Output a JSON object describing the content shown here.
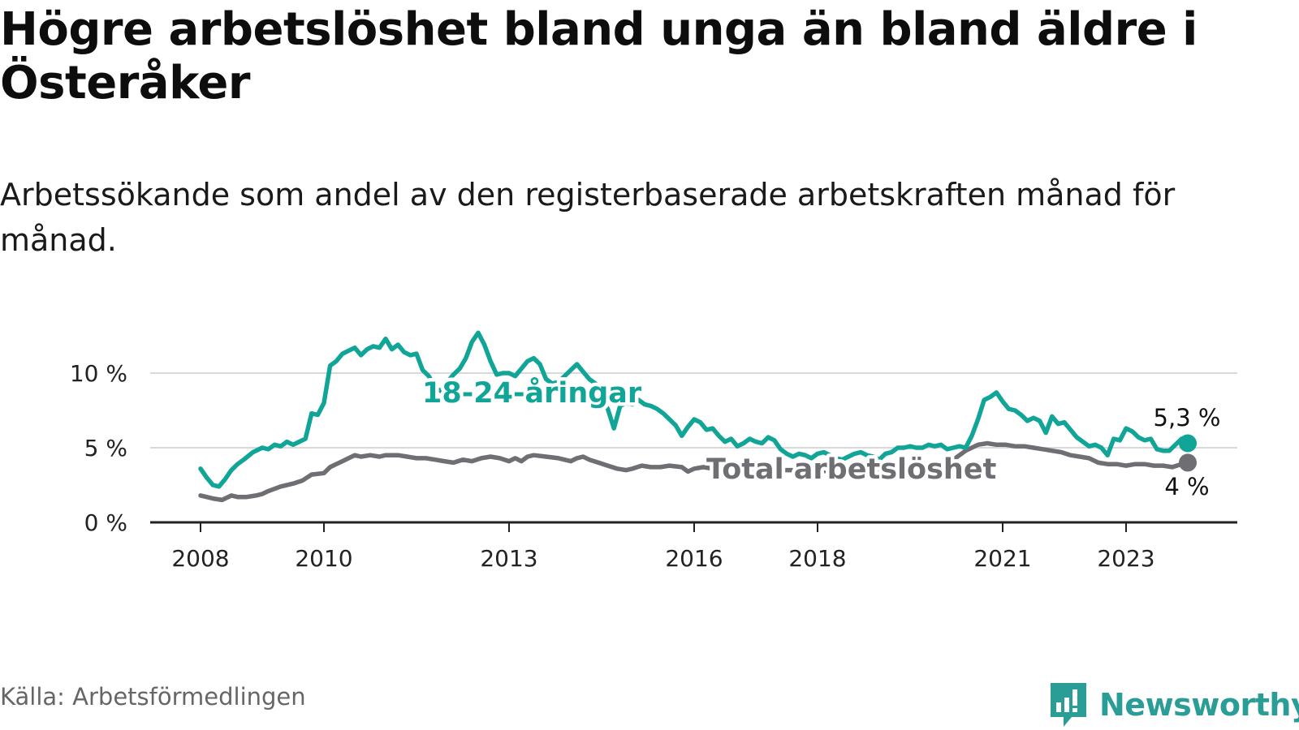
{
  "title": "Högre arbetslöshet bland unga än bland äldre i Österåker",
  "subtitle": "Arbetssökande som andel av den registerbaserade arbetskraften månad för månad.",
  "source": "Källa: Arbetsförmedlingen",
  "brand": "Newsworthy",
  "colors": {
    "youth": "#11a597",
    "total": "#6e6e73",
    "grid": "#d9d9d9",
    "axis": "#222222",
    "brand": "#2a9d96"
  },
  "chart_data": {
    "type": "line",
    "x_unit": "year (decimal)",
    "xlim": [
      2006.8,
      2024.05
    ],
    "ylim": [
      0,
      11.5
    ],
    "yticks": [
      0,
      5,
      10
    ],
    "ytick_labels": [
      "0 %",
      "5 %",
      "10 %"
    ],
    "xticks": [
      2008,
      2010,
      2013,
      2016,
      2018,
      2021,
      2023
    ],
    "xtick_labels": [
      "2008",
      "2010",
      "2013",
      "2016",
      "2018",
      "2021",
      "2023"
    ],
    "grid": true,
    "series": [
      {
        "name": "18-24-åringar",
        "label": "18-24-åringar",
        "end_label": "5,3 %",
        "points": [
          [
            2008.0,
            3.6
          ],
          [
            2008.1,
            3.0
          ],
          [
            2008.2,
            2.5
          ],
          [
            2008.3,
            2.4
          ],
          [
            2008.4,
            2.9
          ],
          [
            2008.5,
            3.5
          ],
          [
            2008.6,
            3.9
          ],
          [
            2008.7,
            4.2
          ],
          [
            2008.85,
            4.7
          ],
          [
            2009.0,
            5.0
          ],
          [
            2009.1,
            4.9
          ],
          [
            2009.2,
            5.2
          ],
          [
            2009.3,
            5.1
          ],
          [
            2009.4,
            5.4
          ],
          [
            2009.5,
            5.2
          ],
          [
            2009.6,
            5.4
          ],
          [
            2009.7,
            5.6
          ],
          [
            2009.8,
            7.3
          ],
          [
            2009.9,
            7.2
          ],
          [
            2010.0,
            8.0
          ],
          [
            2010.1,
            10.5
          ],
          [
            2010.2,
            10.8
          ],
          [
            2010.3,
            11.3
          ],
          [
            2010.4,
            11.5
          ],
          [
            2010.5,
            11.7
          ],
          [
            2010.6,
            11.2
          ],
          [
            2010.7,
            11.6
          ],
          [
            2010.8,
            11.8
          ],
          [
            2010.9,
            11.7
          ],
          [
            2011.0,
            12.3
          ],
          [
            2011.1,
            11.6
          ],
          [
            2011.2,
            11.9
          ],
          [
            2011.3,
            11.4
          ],
          [
            2011.4,
            11.2
          ],
          [
            2011.5,
            11.3
          ],
          [
            2011.6,
            10.2
          ],
          [
            2011.7,
            9.8
          ],
          [
            2011.8,
            9.0
          ],
          [
            2011.9,
            8.8
          ],
          [
            2012.0,
            9.4
          ],
          [
            2012.1,
            9.9
          ],
          [
            2012.2,
            10.3
          ],
          [
            2012.3,
            11.0
          ],
          [
            2012.4,
            12.1
          ],
          [
            2012.5,
            12.7
          ],
          [
            2012.6,
            11.9
          ],
          [
            2012.7,
            10.8
          ],
          [
            2012.8,
            9.9
          ],
          [
            2012.9,
            10.0
          ],
          [
            2013.0,
            10.0
          ],
          [
            2013.1,
            9.8
          ],
          [
            2013.2,
            10.3
          ],
          [
            2013.3,
            10.8
          ],
          [
            2013.4,
            11.0
          ],
          [
            2013.5,
            10.6
          ],
          [
            2013.6,
            9.6
          ],
          [
            2013.7,
            9.3
          ],
          [
            2013.8,
            9.4
          ],
          [
            2013.9,
            9.8
          ],
          [
            2014.0,
            10.2
          ],
          [
            2014.1,
            10.6
          ],
          [
            2014.2,
            10.1
          ],
          [
            2014.3,
            9.6
          ],
          [
            2014.4,
            9.3
          ],
          [
            2014.5,
            8.2
          ],
          [
            2014.6,
            7.6
          ],
          [
            2014.7,
            6.3
          ],
          [
            2014.8,
            7.8
          ],
          [
            2014.9,
            8.0
          ],
          [
            2015.0,
            7.9
          ],
          [
            2015.1,
            8.2
          ],
          [
            2015.2,
            7.9
          ],
          [
            2015.3,
            7.8
          ],
          [
            2015.4,
            7.6
          ],
          [
            2015.5,
            7.3
          ],
          [
            2015.6,
            6.9
          ],
          [
            2015.7,
            6.5
          ],
          [
            2015.8,
            5.8
          ],
          [
            2015.9,
            6.4
          ],
          [
            2016.0,
            6.9
          ],
          [
            2016.1,
            6.7
          ],
          [
            2016.2,
            6.2
          ],
          [
            2016.3,
            6.3
          ],
          [
            2016.4,
            5.8
          ],
          [
            2016.5,
            5.4
          ],
          [
            2016.6,
            5.6
          ],
          [
            2016.7,
            5.1
          ],
          [
            2016.8,
            5.3
          ],
          [
            2016.9,
            5.6
          ],
          [
            2017.0,
            5.4
          ],
          [
            2017.1,
            5.3
          ],
          [
            2017.2,
            5.7
          ],
          [
            2017.3,
            5.5
          ],
          [
            2017.4,
            4.9
          ],
          [
            2017.5,
            4.6
          ],
          [
            2017.6,
            4.4
          ],
          [
            2017.7,
            4.6
          ],
          [
            2017.8,
            4.5
          ],
          [
            2017.9,
            4.3
          ],
          [
            2018.0,
            4.6
          ],
          [
            2018.1,
            4.7
          ],
          [
            2018.2,
            4.5
          ],
          [
            2018.3,
            4.3
          ],
          [
            2018.4,
            4.2
          ],
          [
            2018.5,
            4.4
          ],
          [
            2018.6,
            4.6
          ],
          [
            2018.7,
            4.7
          ],
          [
            2018.8,
            4.5
          ],
          [
            2018.9,
            4.4
          ],
          [
            2019.0,
            4.2
          ],
          [
            2019.1,
            4.6
          ],
          [
            2019.2,
            4.7
          ],
          [
            2019.3,
            5.0
          ],
          [
            2019.4,
            5.0
          ],
          [
            2019.5,
            5.1
          ],
          [
            2019.6,
            5.0
          ],
          [
            2019.7,
            5.0
          ],
          [
            2019.8,
            5.2
          ],
          [
            2019.9,
            5.1
          ],
          [
            2020.0,
            5.2
          ],
          [
            2020.1,
            4.9
          ],
          [
            2020.2,
            5.0
          ],
          [
            2020.3,
            5.1
          ],
          [
            2020.4,
            5.0
          ],
          [
            2020.5,
            5.8
          ],
          [
            2020.6,
            6.9
          ],
          [
            2020.7,
            8.2
          ],
          [
            2020.8,
            8.4
          ],
          [
            2020.9,
            8.7
          ],
          [
            2021.0,
            8.1
          ],
          [
            2021.1,
            7.6
          ],
          [
            2021.2,
            7.5
          ],
          [
            2021.3,
            7.2
          ],
          [
            2021.4,
            6.8
          ],
          [
            2021.5,
            7.0
          ],
          [
            2021.6,
            6.8
          ],
          [
            2021.7,
            6.0
          ],
          [
            2021.8,
            7.1
          ],
          [
            2021.9,
            6.6
          ],
          [
            2022.0,
            6.7
          ],
          [
            2022.1,
            6.2
          ],
          [
            2022.2,
            5.7
          ],
          [
            2022.3,
            5.4
          ],
          [
            2022.4,
            5.1
          ],
          [
            2022.5,
            5.2
          ],
          [
            2022.6,
            5.0
          ],
          [
            2022.7,
            4.5
          ],
          [
            2022.8,
            5.6
          ],
          [
            2022.9,
            5.5
          ],
          [
            2023.0,
            6.3
          ],
          [
            2023.1,
            6.1
          ],
          [
            2023.2,
            5.7
          ],
          [
            2023.3,
            5.5
          ],
          [
            2023.4,
            5.6
          ],
          [
            2023.5,
            4.9
          ],
          [
            2023.6,
            4.8
          ],
          [
            2023.7,
            4.8
          ],
          [
            2023.8,
            5.2
          ],
          [
            2023.9,
            5.6
          ],
          [
            2024.0,
            5.3
          ]
        ]
      },
      {
        "name": "Total arbetslöshet",
        "label": "Total arbetslöshet",
        "end_label": "4 %",
        "points": [
          [
            2008.0,
            1.8
          ],
          [
            2008.2,
            1.6
          ],
          [
            2008.35,
            1.5
          ],
          [
            2008.5,
            1.8
          ],
          [
            2008.6,
            1.7
          ],
          [
            2008.75,
            1.7
          ],
          [
            2008.9,
            1.8
          ],
          [
            2009.0,
            1.9
          ],
          [
            2009.1,
            2.1
          ],
          [
            2009.3,
            2.4
          ],
          [
            2009.5,
            2.6
          ],
          [
            2009.65,
            2.8
          ],
          [
            2009.8,
            3.2
          ],
          [
            2010.0,
            3.3
          ],
          [
            2010.1,
            3.7
          ],
          [
            2010.2,
            3.9
          ],
          [
            2010.3,
            4.1
          ],
          [
            2010.4,
            4.3
          ],
          [
            2010.5,
            4.5
          ],
          [
            2010.6,
            4.4
          ],
          [
            2010.75,
            4.5
          ],
          [
            2010.9,
            4.4
          ],
          [
            2011.0,
            4.5
          ],
          [
            2011.2,
            4.5
          ],
          [
            2011.35,
            4.4
          ],
          [
            2011.5,
            4.3
          ],
          [
            2011.65,
            4.3
          ],
          [
            2011.8,
            4.2
          ],
          [
            2011.95,
            4.1
          ],
          [
            2012.1,
            4.0
          ],
          [
            2012.25,
            4.2
          ],
          [
            2012.4,
            4.1
          ],
          [
            2012.55,
            4.3
          ],
          [
            2012.7,
            4.4
          ],
          [
            2012.85,
            4.3
          ],
          [
            2013.0,
            4.1
          ],
          [
            2013.1,
            4.3
          ],
          [
            2013.2,
            4.1
          ],
          [
            2013.3,
            4.4
          ],
          [
            2013.4,
            4.5
          ],
          [
            2013.6,
            4.4
          ],
          [
            2013.8,
            4.3
          ],
          [
            2014.0,
            4.1
          ],
          [
            2014.1,
            4.3
          ],
          [
            2014.2,
            4.4
          ],
          [
            2014.3,
            4.2
          ],
          [
            2014.45,
            4.0
          ],
          [
            2014.6,
            3.8
          ],
          [
            2014.75,
            3.6
          ],
          [
            2014.9,
            3.5
          ],
          [
            2015.0,
            3.6
          ],
          [
            2015.15,
            3.8
          ],
          [
            2015.3,
            3.7
          ],
          [
            2015.45,
            3.7
          ],
          [
            2015.6,
            3.8
          ],
          [
            2015.8,
            3.7
          ],
          [
            2015.9,
            3.4
          ],
          [
            2016.0,
            3.6
          ],
          [
            2016.15,
            3.7
          ],
          [
            2016.3,
            3.6
          ],
          [
            2016.45,
            3.6
          ],
          [
            2016.6,
            3.6
          ],
          [
            2016.8,
            3.5
          ],
          [
            2017.0,
            3.5
          ],
          [
            2017.2,
            3.6
          ],
          [
            2017.4,
            3.5
          ],
          [
            2017.6,
            3.5
          ],
          [
            2017.8,
            3.4
          ],
          [
            2018.0,
            3.5
          ],
          [
            2018.2,
            3.4
          ],
          [
            2018.4,
            3.4
          ],
          [
            2018.6,
            3.4
          ],
          [
            2018.8,
            3.4
          ],
          [
            2019.0,
            3.5
          ],
          [
            2019.2,
            3.5
          ],
          [
            2019.4,
            3.5
          ],
          [
            2019.6,
            3.6
          ],
          [
            2019.8,
            3.6
          ],
          [
            2020.0,
            3.8
          ],
          [
            2020.2,
            4.2
          ],
          [
            2020.4,
            4.8
          ],
          [
            2020.6,
            5.2
          ],
          [
            2020.75,
            5.3
          ],
          [
            2020.9,
            5.2
          ],
          [
            2021.05,
            5.2
          ],
          [
            2021.2,
            5.1
          ],
          [
            2021.35,
            5.1
          ],
          [
            2021.5,
            5.0
          ],
          [
            2021.65,
            4.9
          ],
          [
            2021.8,
            4.8
          ],
          [
            2021.95,
            4.7
          ],
          [
            2022.1,
            4.5
          ],
          [
            2022.25,
            4.4
          ],
          [
            2022.4,
            4.3
          ],
          [
            2022.55,
            4.0
          ],
          [
            2022.7,
            3.9
          ],
          [
            2022.85,
            3.9
          ],
          [
            2023.0,
            3.8
          ],
          [
            2023.15,
            3.9
          ],
          [
            2023.3,
            3.9
          ],
          [
            2023.45,
            3.8
          ],
          [
            2023.6,
            3.8
          ],
          [
            2023.75,
            3.7
          ],
          [
            2023.9,
            3.9
          ],
          [
            2024.0,
            4.0
          ]
        ]
      }
    ]
  }
}
